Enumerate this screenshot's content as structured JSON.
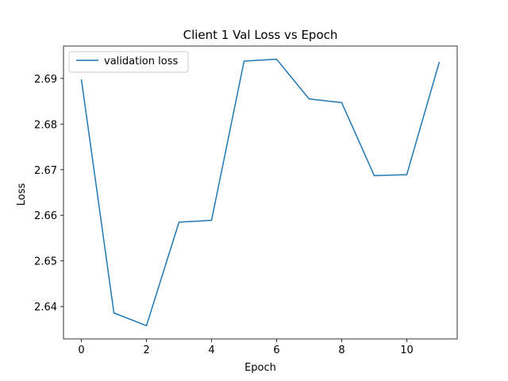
{
  "chart_data": {
    "type": "line",
    "title": "Client 1 Val Loss vs Epoch",
    "xlabel": "Epoch",
    "ylabel": "Loss",
    "x": [
      0,
      1,
      2,
      3,
      4,
      5,
      6,
      7,
      8,
      9,
      10,
      11
    ],
    "series": [
      {
        "name": "validation loss",
        "color": "#1f77b4",
        "values": [
          2.6898,
          2.6386,
          2.6358,
          2.6585,
          2.6589,
          2.6938,
          2.6942,
          2.6855,
          2.6847,
          2.6687,
          2.6689,
          2.6936
        ]
      }
    ],
    "xlim": [
      -0.55,
      11.55
    ],
    "ylim": [
      2.6329,
      2.6971
    ],
    "xticks": [
      0,
      2,
      4,
      6,
      8,
      10
    ],
    "xtick_labels": [
      "0",
      "2",
      "4",
      "6",
      "8",
      "10"
    ],
    "yticks": [
      2.64,
      2.65,
      2.66,
      2.67,
      2.68,
      2.69
    ],
    "ytick_labels": [
      "2.64",
      "2.65",
      "2.66",
      "2.67",
      "2.68",
      "2.69"
    ],
    "grid": false,
    "legend_position": "top-left"
  }
}
